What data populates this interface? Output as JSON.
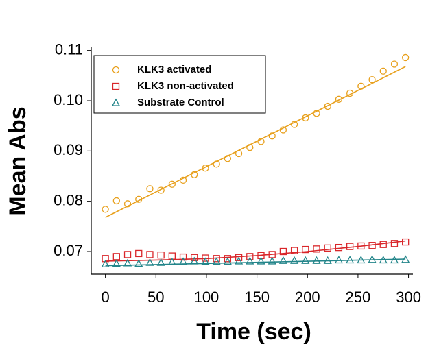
{
  "chart_data": {
    "type": "scatter",
    "xlabel": "Time (sec)",
    "ylabel": "Mean Abs",
    "x": [
      0,
      11,
      22,
      33,
      44,
      55,
      66,
      77,
      88,
      99,
      110,
      121,
      132,
      143,
      154,
      165,
      176,
      187,
      198,
      209,
      220,
      231,
      242,
      253,
      264,
      275,
      286,
      297
    ],
    "xlim": [
      -14,
      303
    ],
    "xticks": [
      0,
      50,
      100,
      150,
      200,
      250,
      300
    ],
    "ylim": [
      0.0655,
      0.1105
    ],
    "yticks": [
      0.07,
      0.08,
      0.09,
      {
        "value": 0.1,
        "label": "0.10"
      },
      0.11
    ],
    "legend": "upper-left",
    "series": [
      {
        "name": "KLK3 activated",
        "color": "#e8a01c",
        "marker": "circle",
        "values": [
          0.0784,
          0.0801,
          0.0795,
          0.0804,
          0.0825,
          0.0822,
          0.0834,
          0.0842,
          0.0853,
          0.0866,
          0.0874,
          0.0885,
          0.0895,
          0.0907,
          0.0919,
          0.093,
          0.0942,
          0.0953,
          0.0966,
          0.0975,
          0.0989,
          0.1003,
          0.1015,
          0.1029,
          0.1042,
          0.1059,
          0.1073,
          0.1086
        ],
        "fit": {
          "x": [
            0,
            297
          ],
          "values": [
            0.0768,
            0.1068
          ]
        }
      },
      {
        "name": "KLK3 non-activated",
        "color": "#d9262a",
        "marker": "square",
        "values": [
          0.0686,
          0.069,
          0.0694,
          0.0696,
          0.0694,
          0.0693,
          0.0691,
          0.0689,
          0.0688,
          0.0687,
          0.0686,
          0.0686,
          0.0688,
          0.069,
          0.0692,
          0.0694,
          0.07,
          0.0702,
          0.0704,
          0.0705,
          0.0707,
          0.0708,
          0.071,
          0.0711,
          0.0712,
          0.0714,
          0.0716,
          0.0719
        ],
        "fit": {
          "x": [
            0,
            50,
            100,
            150,
            200,
            250,
            297
          ],
          "values": [
            0.0681,
            0.0683,
            0.0686,
            0.0692,
            0.07,
            0.071,
            0.0721
          ]
        }
      },
      {
        "name": "Substrate Control",
        "color": "#23858a",
        "marker": "triangle",
        "values": [
          0.0675,
          0.0676,
          0.0677,
          0.0676,
          0.0678,
          0.0678,
          0.0679,
          0.068,
          0.0681,
          0.068,
          0.068,
          0.068,
          0.0681,
          0.0681,
          0.0681,
          0.0681,
          0.0682,
          0.0682,
          0.0682,
          0.0682,
          0.0682,
          0.0683,
          0.0683,
          0.0683,
          0.0684,
          0.0683,
          0.0683,
          0.0684
        ],
        "fit": {
          "x": [
            0,
            297
          ],
          "values": [
            0.0672,
            0.0685
          ]
        }
      }
    ]
  }
}
